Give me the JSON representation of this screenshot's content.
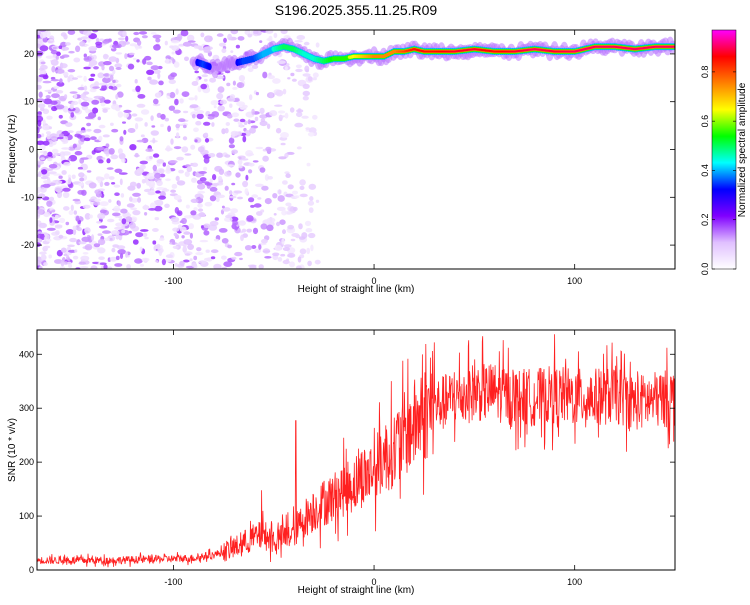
{
  "title": "S196.2025.355.11.25.R09",
  "chart_data": [
    {
      "type": "heatmap",
      "xlabel": "Height of straight line (km)",
      "ylabel": "Frequency (Hz)",
      "xlim": [
        -168,
        150
      ],
      "ylim": [
        -25,
        25
      ],
      "xticks": [
        -100,
        0,
        100
      ],
      "yticks": [
        -20,
        -10,
        0,
        10,
        20
      ],
      "colorbar": {
        "label": "Normalized spectral amplitude",
        "range": [
          0,
          0.97
        ],
        "ticks": [
          0.0,
          0.2,
          0.4,
          0.6,
          0.8
        ],
        "tick_labels": [
          "0.0",
          "0.2",
          "0.4",
          "0.6",
          "0.8"
        ],
        "colors": [
          "#ffffff",
          "#e0c0ff",
          "#8000ff",
          "#0000ff",
          "#00ffff",
          "#00ff00",
          "#ffff00",
          "#ff8000",
          "#ff0000",
          "#ff00ff"
        ]
      },
      "ridge": {
        "x": [
          -90,
          -85,
          -80,
          -75,
          -70,
          -65,
          -60,
          -55,
          -50,
          -45,
          -40,
          -35,
          -30,
          -25,
          -20,
          -15,
          -10,
          -5,
          0,
          5,
          10,
          15,
          20,
          25,
          30,
          40,
          50,
          60,
          70,
          80,
          90,
          100,
          110,
          120,
          130,
          140,
          150
        ],
        "freq": [
          18.5,
          17.8,
          17,
          17.5,
          18,
          18.5,
          19,
          20,
          21,
          21.5,
          21,
          20,
          19,
          18.5,
          19,
          19,
          19.5,
          19.5,
          19.5,
          19.5,
          20.5,
          20.5,
          21,
          20.5,
          20.5,
          20.5,
          21,
          20.5,
          20.5,
          21,
          20.5,
          20.5,
          21.5,
          21.5,
          21,
          21.5,
          21.5
        ],
        "amplitude": [
          0.3,
          0.35,
          0.3,
          0.3,
          0.3,
          0.35,
          0.35,
          0.4,
          0.45,
          0.5,
          0.5,
          0.45,
          0.45,
          0.5,
          0.55,
          0.6,
          0.65,
          0.7,
          0.75,
          0.75,
          0.75,
          0.8,
          0.85,
          0.85,
          0.85,
          0.88,
          0.88,
          0.85,
          0.88,
          0.9,
          0.88,
          0.9,
          0.9,
          0.92,
          0.9,
          0.92,
          0.9
        ]
      },
      "noise_region": {
        "x_range": [
          -168,
          -68
        ],
        "freq_range": [
          -25,
          25
        ],
        "amplitude_range": [
          0.02,
          0.2
        ]
      }
    },
    {
      "type": "line",
      "xlabel": "Height of straight line (km)",
      "ylabel": "SNR (10 * v/v)",
      "xlim": [
        -168,
        150
      ],
      "ylim": [
        0,
        445
      ],
      "xticks": [
        -100,
        0,
        100
      ],
      "yticks": [
        0,
        100,
        200,
        300,
        400
      ],
      "color": "#ff2020",
      "series": [
        {
          "name": "SNR",
          "x": [
            -168,
            -150,
            -130,
            -110,
            -90,
            -80,
            -70,
            -65,
            -60,
            -55,
            -50,
            -45,
            -40,
            -35,
            -30,
            -25,
            -20,
            -15,
            -10,
            -5,
            0,
            5,
            10,
            15,
            20,
            25,
            30,
            35,
            40,
            50,
            60,
            70,
            80,
            90,
            100,
            110,
            120,
            130,
            140,
            150
          ],
          "values": [
            18,
            18,
            18,
            20,
            22,
            28,
            40,
            50,
            60,
            65,
            55,
            60,
            70,
            95,
            110,
            125,
            135,
            150,
            160,
            175,
            185,
            210,
            225,
            250,
            270,
            290,
            305,
            310,
            320,
            330,
            330,
            320,
            320,
            325,
            320,
            320,
            325,
            310,
            315,
            320
          ],
          "spikes": [
            {
              "x": -56,
              "value": 148
            },
            {
              "x": -39,
              "value": 277
            },
            {
              "x": 30,
              "value": 422
            },
            {
              "x": 47,
              "value": 415
            },
            {
              "x": 90,
              "value": 437
            },
            {
              "x": 146,
              "value": 412
            }
          ]
        }
      ]
    }
  ]
}
